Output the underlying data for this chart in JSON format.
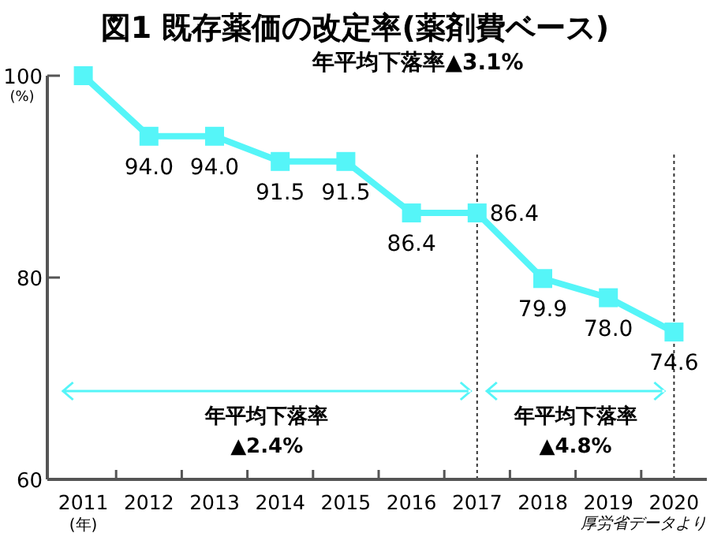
{
  "chart_data": {
    "type": "line",
    "title": "図1 既存薬価の改定率(薬剤費ベース)",
    "subtitle": "年平均下落率▲3.1%",
    "ylabel": "(%)",
    "xlabel": "(年)",
    "categories": [
      "2011",
      "2012",
      "2013",
      "2014",
      "2015",
      "2016",
      "2017",
      "2018",
      "2019",
      "2020"
    ],
    "series": [
      {
        "color": "#55f5f8",
        "values": [
          100,
          94.0,
          94.0,
          91.5,
          91.5,
          86.4,
          86.4,
          79.9,
          78.0,
          74.6
        ],
        "value_labels": [
          null,
          "94.0",
          "94.0",
          "91.5",
          "91.5",
          "86.4",
          "86.4",
          "79.9",
          "78.0",
          "74.6"
        ]
      }
    ],
    "ylim": [
      60,
      100
    ],
    "yticks": [
      60,
      80,
      100
    ],
    "marker": "square",
    "grid": false,
    "ref_lines": [
      {
        "axis": "x",
        "value": "2017",
        "line_style": "dotted"
      },
      {
        "axis": "x",
        "value": "2020",
        "line_style": "dotted"
      }
    ],
    "annotations": [
      "年平均下落率\n▲2.4%",
      "年平均下落率\n▲4.8%",
      "厚労省データより"
    ]
  }
}
